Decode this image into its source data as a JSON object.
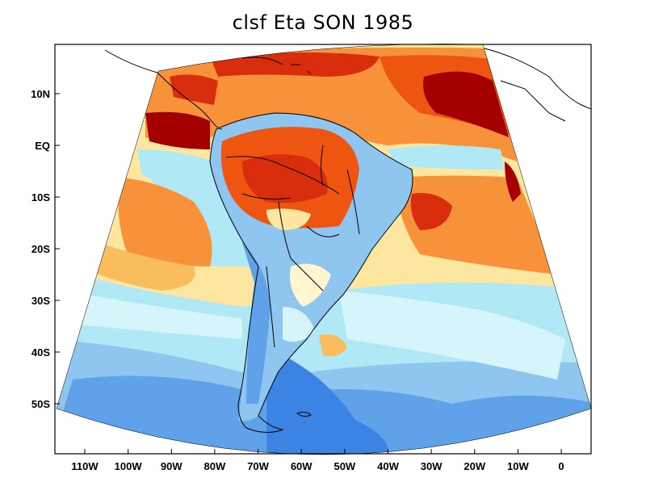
{
  "title": "clsf Eta SON 1985",
  "map": {
    "region": "South America",
    "projection": "polar stereographic sector",
    "lon_range": [
      -117,
      7
    ],
    "lat_range": [
      -58,
      17
    ]
  },
  "axes": {
    "y_ticks": [
      {
        "label": "10N",
        "lat": 10
      },
      {
        "label": "EQ",
        "lat": 0
      },
      {
        "label": "10S",
        "lat": -10
      },
      {
        "label": "20S",
        "lat": -20
      },
      {
        "label": "30S",
        "lat": -30
      },
      {
        "label": "40S",
        "lat": -40
      },
      {
        "label": "50S",
        "lat": -50
      }
    ],
    "x_ticks": [
      {
        "label": "110W",
        "lon": -110
      },
      {
        "label": "100W",
        "lon": -100
      },
      {
        "label": "90W",
        "lon": -90
      },
      {
        "label": "80W",
        "lon": -80
      },
      {
        "label": "70W",
        "lon": -70
      },
      {
        "label": "60W",
        "lon": -60
      },
      {
        "label": "50W",
        "lon": -50
      },
      {
        "label": "40W",
        "lon": -40
      },
      {
        "label": "30W",
        "lon": -30
      },
      {
        "label": "20W",
        "lon": -20
      },
      {
        "label": "10W",
        "lon": -10
      },
      {
        "label": "0",
        "lon": 0
      }
    ]
  },
  "colors": {
    "dark_red": "#a40000",
    "red": "#d92e0e",
    "orange_red": "#ee5511",
    "orange": "#f7923a",
    "light_orange": "#f9bd5e",
    "yellow": "#fde6a0",
    "pale_yellow": "#fff6d0",
    "pale_cyan": "#d6f5fb",
    "light_cyan": "#b0e8f6",
    "light_blue": "#8ec6f0",
    "mid_blue": "#5fa2ea",
    "blue": "#3c84e4",
    "coast_line": "#000000"
  }
}
